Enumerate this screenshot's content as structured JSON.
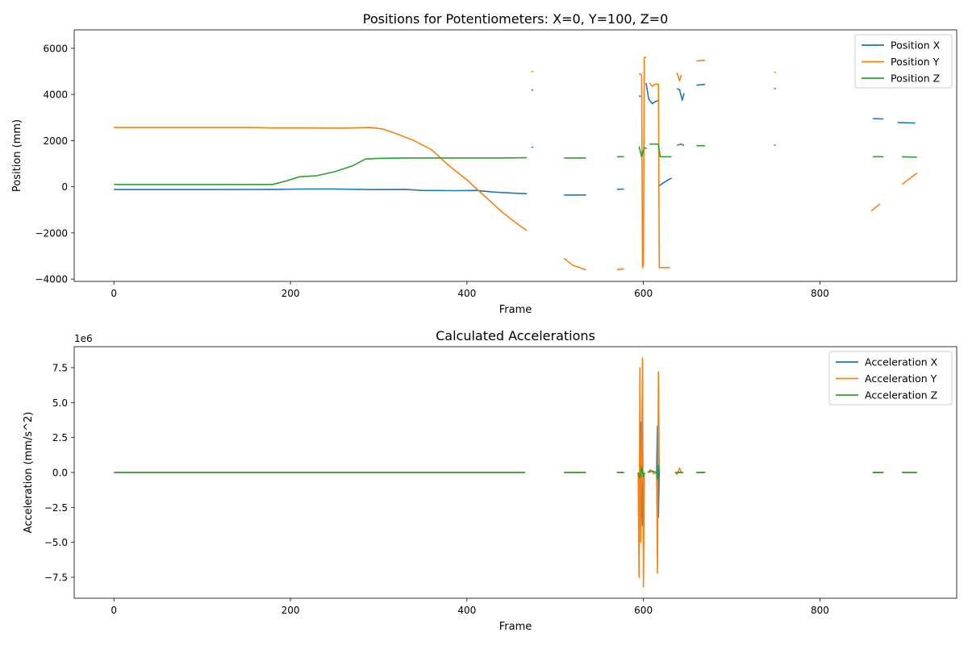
{
  "colors": {
    "x": "#1f77b4",
    "y": "#ff7f0e",
    "z": "#2ca02c"
  },
  "chart_data": [
    {
      "type": "line",
      "title": "Positions for Potentiometers: X=0, Y=100, Z=0",
      "xlabel": "Frame",
      "ylabel": "Position (mm)",
      "xlim": [
        -45,
        955
      ],
      "ylim": [
        -4100,
        6800
      ],
      "xticks": [
        0,
        200,
        400,
        600,
        800
      ],
      "yticks": [
        -4000,
        -2000,
        0,
        2000,
        4000,
        6000
      ],
      "legend_position": "top-right",
      "series": [
        {
          "name": "Position X",
          "color_key": "x",
          "segments": [
            [
              [
                0,
                -120
              ],
              [
                100,
                -120
              ],
              [
                180,
                -115
              ],
              [
                210,
                -100
              ],
              [
                250,
                -95
              ],
              [
                290,
                -120
              ],
              [
                330,
                -115
              ],
              [
                350,
                -160
              ],
              [
                390,
                -170
              ],
              [
                410,
                -160
              ],
              [
                430,
                -230
              ],
              [
                455,
                -280
              ],
              [
                468,
                -300
              ]
            ],
            [
              [
                473,
                4200
              ],
              [
                475,
                4180
              ]
            ],
            [
              [
                510,
                -360
              ],
              [
                535,
                -360
              ]
            ],
            [
              [
                570,
                -110
              ],
              [
                578,
                -100
              ]
            ],
            [
              [
                595,
                3950
              ],
              [
                597,
                3900
              ]
            ],
            [
              [
                603,
                4500
              ],
              [
                606,
                3800
              ],
              [
                610,
                3600
              ],
              [
                614,
                3700
              ],
              [
                618,
                3750
              ]
            ],
            [
              [
                618,
                50
              ],
              [
                622,
                150
              ],
              [
                628,
                300
              ],
              [
                632,
                380
              ]
            ],
            [
              [
                638,
                4250
              ],
              [
                641,
                4200
              ],
              [
                644,
                3750
              ],
              [
                646,
                4050
              ]
            ],
            [
              [
                660,
                4400
              ],
              [
                670,
                4440
              ]
            ],
            [
              [
                748,
                4250
              ],
              [
                750,
                4260
              ]
            ],
            [
              [
                860,
                2950
              ],
              [
                872,
                2940
              ]
            ],
            [
              [
                888,
                2780
              ],
              [
                908,
                2760
              ]
            ]
          ]
        },
        {
          "name": "Position Y",
          "color_key": "y",
          "segments": [
            [
              [
                0,
                2570
              ],
              [
                160,
                2570
              ],
              [
                180,
                2550
              ],
              [
                220,
                2550
              ],
              [
                260,
                2540
              ],
              [
                290,
                2570
              ],
              [
                305,
                2500
              ],
              [
                320,
                2300
              ],
              [
                340,
                2000
              ],
              [
                360,
                1600
              ],
              [
                380,
                900
              ],
              [
                400,
                300
              ],
              [
                420,
                -400
              ],
              [
                440,
                -1100
              ],
              [
                455,
                -1550
              ],
              [
                468,
                -1900
              ]
            ],
            [
              [
                473,
                5000
              ],
              [
                475,
                4980
              ]
            ],
            [
              [
                510,
                -3100
              ],
              [
                520,
                -3400
              ],
              [
                535,
                -3600
              ]
            ],
            [
              [
                570,
                -3600
              ],
              [
                578,
                -3550
              ]
            ],
            [
              [
                595,
                4900
              ],
              [
                598,
                4850
              ],
              [
                599,
                -3500
              ],
              [
                600,
                -3400
              ],
              [
                601,
                5600
              ],
              [
                603,
                5620
              ]
            ],
            [
              [
                607,
                4500
              ],
              [
                610,
                4350
              ],
              [
                613,
                4450
              ],
              [
                617,
                4450
              ],
              [
                618,
                -3500
              ],
              [
                630,
                -3500
              ]
            ],
            [
              [
                638,
                4950
              ],
              [
                641,
                4600
              ],
              [
                643,
                4850
              ]
            ],
            [
              [
                660,
                5450
              ],
              [
                670,
                5480
              ]
            ],
            [
              [
                748,
                4970
              ],
              [
                750,
                4960
              ]
            ],
            [
              [
                858,
                -1050
              ],
              [
                868,
                -750
              ]
            ],
            [
              [
                893,
                100
              ],
              [
                910,
                600
              ]
            ]
          ]
        },
        {
          "name": "Position Z",
          "color_key": "z",
          "segments": [
            [
              [
                0,
                100
              ],
              [
                180,
                100
              ],
              [
                195,
                250
              ],
              [
                210,
                430
              ],
              [
                230,
                480
              ],
              [
                250,
                650
              ],
              [
                270,
                900
              ],
              [
                285,
                1200
              ],
              [
                300,
                1230
              ],
              [
                330,
                1250
              ],
              [
                360,
                1250
              ],
              [
                400,
                1250
              ],
              [
                440,
                1250
              ],
              [
                468,
                1260
              ]
            ],
            [
              [
                473,
                1720
              ],
              [
                475,
                1710
              ]
            ],
            [
              [
                510,
                1250
              ],
              [
                535,
                1250
              ]
            ],
            [
              [
                570,
                1300
              ],
              [
                578,
                1300
              ]
            ],
            [
              [
                595,
                1750
              ],
              [
                598,
                1300
              ],
              [
                601,
                1700
              ],
              [
                604,
                1650
              ]
            ],
            [
              [
                607,
                1850
              ],
              [
                617,
                1850
              ],
              [
                619,
                1300
              ],
              [
                632,
                1300
              ]
            ],
            [
              [
                638,
                1800
              ],
              [
                643,
                1850
              ],
              [
                646,
                1780
              ]
            ],
            [
              [
                660,
                1780
              ],
              [
                670,
                1780
              ]
            ],
            [
              [
                748,
                1800
              ],
              [
                750,
                1800
              ]
            ],
            [
              [
                860,
                1300
              ],
              [
                872,
                1300
              ]
            ],
            [
              [
                893,
                1300
              ],
              [
                910,
                1280
              ]
            ]
          ]
        }
      ]
    },
    {
      "type": "line",
      "title": "Calculated Accelerations",
      "xlabel": "Frame",
      "ylabel": "Acceleration (mm/s^2)",
      "y_offset_label": "1e6",
      "xlim": [
        -45,
        955
      ],
      "ylim": [
        -9.0,
        9.0
      ],
      "xticks": [
        0,
        200,
        400,
        600,
        800
      ],
      "yticks": [
        -7.5,
        -5.0,
        -2.5,
        0.0,
        2.5,
        5.0,
        7.5
      ],
      "ytick_labels": [
        "−7.5",
        "−5.0",
        "−2.5",
        "0.0",
        "2.5",
        "5.0",
        "7.5"
      ],
      "legend_position": "top-right",
      "series": [
        {
          "name": "Acceleration X",
          "color_key": "x",
          "segments": [
            [
              [
                0,
                0
              ],
              [
                466,
                0
              ]
            ],
            [
              [
                510,
                0
              ],
              [
                535,
                0
              ]
            ],
            [
              [
                570,
                0
              ],
              [
                578,
                0
              ]
            ],
            [
              [
                594,
                0
              ],
              [
                596,
                -2.0
              ],
              [
                597,
                3.6
              ],
              [
                599,
                -3.8
              ],
              [
                600,
                0
              ]
            ],
            [
              [
                615,
                0
              ],
              [
                616,
                3.3
              ],
              [
                617,
                -3.2
              ],
              [
                618,
                0
              ]
            ],
            [
              [
                636,
                0
              ],
              [
                645,
                0
              ]
            ],
            [
              [
                660,
                0
              ],
              [
                670,
                0
              ]
            ],
            [
              [
                860,
                0
              ],
              [
                872,
                0
              ]
            ],
            [
              [
                893,
                0
              ],
              [
                910,
                0
              ]
            ]
          ]
        },
        {
          "name": "Acceleration Y",
          "color_key": "y",
          "segments": [
            [
              [
                0,
                0
              ],
              [
                466,
                0
              ]
            ],
            [
              [
                510,
                0
              ],
              [
                535,
                0
              ]
            ],
            [
              [
                570,
                0
              ],
              [
                578,
                0
              ]
            ],
            [
              [
                594,
                0
              ],
              [
                595,
                -7.5
              ],
              [
                596,
                7.5
              ],
              [
                597,
                -5.0
              ],
              [
                598,
                0.5
              ],
              [
                599,
                8.2
              ],
              [
                600,
                -8.2
              ],
              [
                601,
                0
              ]
            ],
            [
              [
                605,
                0
              ],
              [
                608,
                0.2
              ],
              [
                612,
                -0.1
              ],
              [
                615,
                0
              ],
              [
                616,
                -7.2
              ],
              [
                617,
                7.2
              ],
              [
                618,
                0
              ]
            ],
            [
              [
                636,
                0
              ],
              [
                638,
                -0.15
              ],
              [
                641,
                0.3
              ],
              [
                643,
                0
              ]
            ],
            [
              [
                660,
                0
              ],
              [
                670,
                0
              ]
            ],
            [
              [
                860,
                0
              ],
              [
                872,
                0
              ]
            ],
            [
              [
                893,
                0
              ],
              [
                910,
                0
              ]
            ]
          ]
        },
        {
          "name": "Acceleration Z",
          "color_key": "z",
          "segments": [
            [
              [
                0,
                0
              ],
              [
                466,
                0
              ]
            ],
            [
              [
                510,
                0
              ],
              [
                535,
                0
              ]
            ],
            [
              [
                570,
                0
              ],
              [
                578,
                0
              ]
            ],
            [
              [
                594,
                0
              ],
              [
                596,
                -0.4
              ],
              [
                598,
                0.4
              ],
              [
                600,
                -0.3
              ],
              [
                601,
                0
              ]
            ],
            [
              [
                605,
                0
              ],
              [
                610,
                0.1
              ],
              [
                615,
                0
              ],
              [
                616,
                -0.5
              ],
              [
                617,
                0.5
              ],
              [
                618,
                0
              ]
            ],
            [
              [
                636,
                0
              ],
              [
                645,
                0
              ]
            ],
            [
              [
                660,
                0
              ],
              [
                670,
                0
              ]
            ],
            [
              [
                860,
                0
              ],
              [
                872,
                0
              ]
            ],
            [
              [
                893,
                0
              ],
              [
                910,
                0
              ]
            ]
          ]
        }
      ]
    }
  ]
}
